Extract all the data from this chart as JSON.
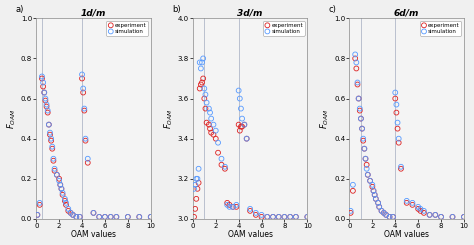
{
  "panels": [
    {
      "title": "1d/m",
      "label": "a)",
      "xlabel": "OAM values",
      "ylim": [
        0,
        1.0
      ],
      "yticks": [
        0,
        0.2,
        0.4,
        0.6,
        0.8,
        1.0
      ],
      "vlines": [
        0.5,
        4.0
      ],
      "sim_x": [
        0.1,
        0.3,
        0.5,
        0.6,
        0.7,
        0.8,
        0.9,
        1.0,
        1.1,
        1.2,
        1.3,
        1.4,
        1.5,
        1.6,
        1.8,
        2.0,
        2.1,
        2.2,
        2.3,
        2.5,
        2.6,
        2.8,
        3.0,
        3.2,
        3.5,
        3.8,
        4.0,
        4.1,
        4.2,
        4.3,
        4.5,
        5.0,
        5.5,
        6.0,
        6.5,
        7.0,
        8.0,
        9.0,
        10.0
      ],
      "sim_y": [
        0.02,
        0.08,
        0.71,
        0.68,
        0.63,
        0.6,
        0.57,
        0.54,
        0.47,
        0.43,
        0.4,
        0.36,
        0.3,
        0.25,
        0.22,
        0.19,
        0.17,
        0.15,
        0.13,
        0.1,
        0.08,
        0.05,
        0.03,
        0.02,
        0.01,
        0.01,
        0.72,
        0.65,
        0.55,
        0.4,
        0.3,
        0.03,
        0.01,
        0.01,
        0.01,
        0.01,
        0.01,
        0.01,
        0.01
      ],
      "exp_x": [
        0.1,
        0.3,
        0.5,
        0.6,
        0.7,
        0.8,
        0.9,
        1.0,
        1.1,
        1.2,
        1.3,
        1.4,
        1.5,
        1.6,
        1.8,
        2.0,
        2.1,
        2.2,
        2.3,
        2.5,
        2.6,
        2.8,
        3.0,
        3.2,
        3.5,
        3.8,
        4.0,
        4.1,
        4.2,
        4.3,
        4.5,
        5.0,
        5.5,
        6.0,
        6.5,
        7.0,
        8.0,
        9.0,
        10.0
      ],
      "exp_y": [
        0.02,
        0.07,
        0.7,
        0.66,
        0.63,
        0.59,
        0.56,
        0.53,
        0.47,
        0.42,
        0.39,
        0.35,
        0.29,
        0.24,
        0.22,
        0.2,
        0.17,
        0.15,
        0.12,
        0.09,
        0.07,
        0.04,
        0.03,
        0.02,
        0.01,
        0.01,
        0.7,
        0.63,
        0.54,
        0.39,
        0.28,
        0.03,
        0.01,
        0.01,
        0.01,
        0.01,
        0.01,
        0.01,
        0.01
      ]
    },
    {
      "title": "3d/m",
      "label": "b)",
      "xlabel": "OAM values",
      "ylim": [
        3.0,
        4.0
      ],
      "yticks": [
        3.0,
        3.2,
        3.4,
        3.6,
        3.8,
        4.0
      ],
      "vlines": [
        1.0,
        4.0
      ],
      "sim_x": [
        0.1,
        0.2,
        0.3,
        0.4,
        0.5,
        0.6,
        0.7,
        0.8,
        0.9,
        1.0,
        1.1,
        1.2,
        1.4,
        1.5,
        1.6,
        1.8,
        2.0,
        2.2,
        2.5,
        2.8,
        3.0,
        3.2,
        3.5,
        3.8,
        4.0,
        4.1,
        4.2,
        4.3,
        4.5,
        4.7,
        5.0,
        5.5,
        6.0,
        6.5,
        7.0,
        7.5,
        8.0,
        8.5,
        9.0,
        10.0
      ],
      "sim_y": [
        3.15,
        3.17,
        3.2,
        3.2,
        3.25,
        3.78,
        3.75,
        3.78,
        3.8,
        3.65,
        3.62,
        3.58,
        3.55,
        3.53,
        3.5,
        3.47,
        3.44,
        3.38,
        3.3,
        3.26,
        3.07,
        3.06,
        3.06,
        3.07,
        3.64,
        3.6,
        3.55,
        3.5,
        3.47,
        3.4,
        3.05,
        3.03,
        3.02,
        3.01,
        3.01,
        3.01,
        3.01,
        3.01,
        3.01,
        3.01
      ],
      "exp_x": [
        0.1,
        0.2,
        0.3,
        0.4,
        0.5,
        0.6,
        0.7,
        0.8,
        0.9,
        1.0,
        1.1,
        1.2,
        1.4,
        1.5,
        1.6,
        1.8,
        2.0,
        2.2,
        2.5,
        2.8,
        3.0,
        3.2,
        3.5,
        3.8,
        4.0,
        4.1,
        4.2,
        4.3,
        4.5,
        4.7,
        5.0,
        5.5,
        6.0,
        6.5,
        7.0,
        7.5,
        8.0,
        8.5,
        9.0,
        10.0
      ],
      "exp_y": [
        3.01,
        3.05,
        3.1,
        3.15,
        3.18,
        3.65,
        3.67,
        3.68,
        3.7,
        3.6,
        3.55,
        3.48,
        3.47,
        3.45,
        3.43,
        3.42,
        3.4,
        3.33,
        3.27,
        3.25,
        3.08,
        3.07,
        3.06,
        3.06,
        3.47,
        3.44,
        3.46,
        3.46,
        3.47,
        3.4,
        3.04,
        3.02,
        3.01,
        3.01,
        3.01,
        3.01,
        3.01,
        3.01,
        3.01,
        3.01
      ]
    },
    {
      "title": "6d/m",
      "label": "c)",
      "xlabel": "OAM values",
      "ylim": [
        0,
        1.0
      ],
      "yticks": [
        0,
        0.2,
        0.4,
        0.6,
        0.8,
        1.0
      ],
      "vlines": [
        1.0,
        4.0
      ],
      "sim_x": [
        0.1,
        0.3,
        0.5,
        0.6,
        0.7,
        0.8,
        0.9,
        1.0,
        1.1,
        1.2,
        1.3,
        1.4,
        1.5,
        1.6,
        1.8,
        2.0,
        2.1,
        2.2,
        2.3,
        2.5,
        2.6,
        2.8,
        3.0,
        3.2,
        3.5,
        3.8,
        4.0,
        4.1,
        4.2,
        4.3,
        4.5,
        5.0,
        5.5,
        6.0,
        6.2,
        6.5,
        7.0,
        7.5,
        8.0,
        9.0,
        10.0
      ],
      "sim_y": [
        0.04,
        0.17,
        0.82,
        0.78,
        0.68,
        0.6,
        0.55,
        0.5,
        0.45,
        0.4,
        0.35,
        0.3,
        0.25,
        0.22,
        0.19,
        0.17,
        0.14,
        0.12,
        0.1,
        0.08,
        0.06,
        0.04,
        0.03,
        0.02,
        0.01,
        0.01,
        0.63,
        0.57,
        0.48,
        0.4,
        0.26,
        0.09,
        0.08,
        0.06,
        0.05,
        0.04,
        0.02,
        0.02,
        0.01,
        0.01,
        0.01
      ],
      "exp_x": [
        0.1,
        0.3,
        0.5,
        0.6,
        0.7,
        0.8,
        0.9,
        1.0,
        1.1,
        1.2,
        1.3,
        1.4,
        1.5,
        1.6,
        1.8,
        2.0,
        2.1,
        2.2,
        2.3,
        2.5,
        2.6,
        2.8,
        3.0,
        3.2,
        3.5,
        3.8,
        4.0,
        4.1,
        4.2,
        4.3,
        4.5,
        5.0,
        5.5,
        6.0,
        6.2,
        6.5,
        7.0,
        7.5,
        8.0,
        9.0,
        10.0
      ],
      "exp_y": [
        0.03,
        0.14,
        0.8,
        0.75,
        0.67,
        0.6,
        0.54,
        0.5,
        0.45,
        0.39,
        0.35,
        0.3,
        0.27,
        0.22,
        0.19,
        0.16,
        0.14,
        0.12,
        0.1,
        0.08,
        0.06,
        0.04,
        0.03,
        0.02,
        0.01,
        0.01,
        0.6,
        0.53,
        0.45,
        0.38,
        0.25,
        0.08,
        0.07,
        0.05,
        0.04,
        0.03,
        0.02,
        0.02,
        0.01,
        0.01,
        0.01
      ]
    }
  ],
  "sim_color": "#5599ff",
  "exp_color": "#dd2222",
  "vline_color": "#b0b8c8",
  "bg_color": "#f0f0f0",
  "plot_bg": "#f4f4f4",
  "marker_size": 3.5,
  "xlim": [
    0,
    10
  ],
  "xticks": [
    0,
    2,
    4,
    6,
    8,
    10
  ],
  "ylabel": "F_{OAM}"
}
